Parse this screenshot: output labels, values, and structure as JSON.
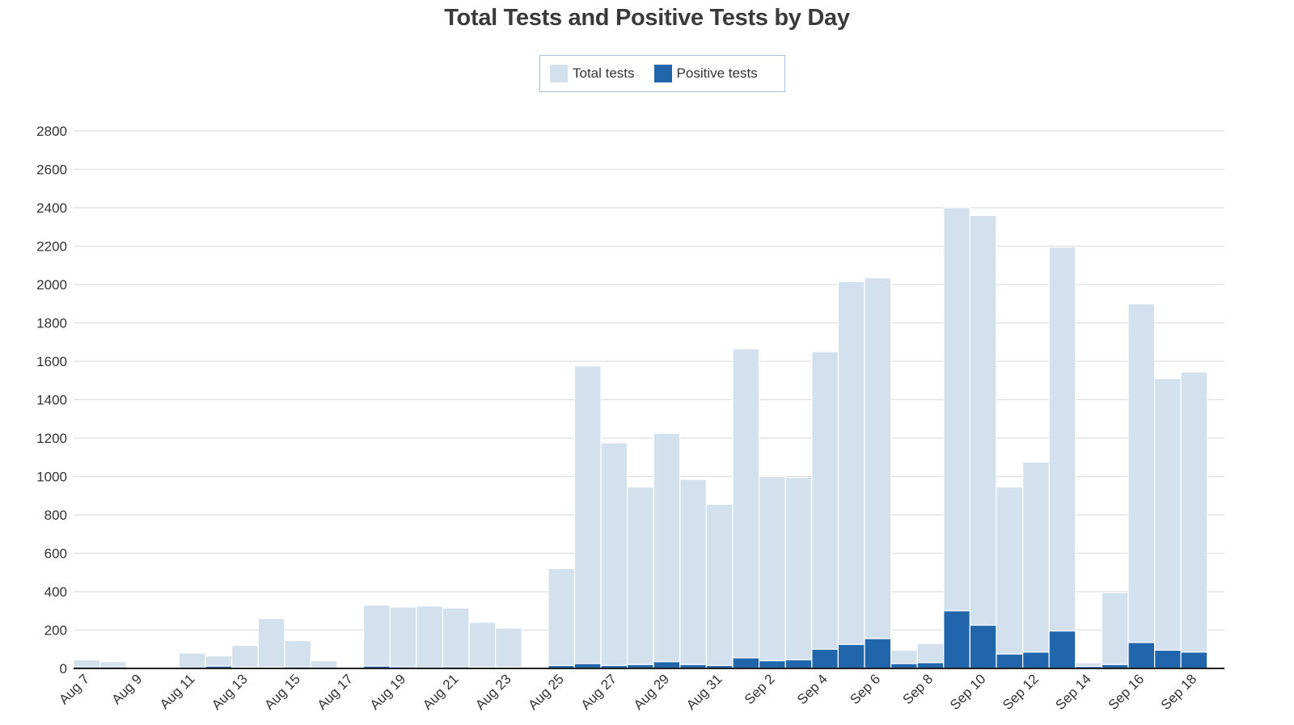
{
  "chart_data": {
    "type": "bar",
    "title": "Total Tests and Positive Tests by Day",
    "xlabel": "",
    "ylabel": "",
    "ylim": [
      0,
      2800
    ],
    "yticks": [
      0,
      200,
      400,
      600,
      800,
      1000,
      1200,
      1400,
      1600,
      1800,
      2000,
      2200,
      2400,
      2600,
      2800
    ],
    "grid": true,
    "legend_position": "top-center",
    "categories": [
      "Aug 7",
      "Aug 8",
      "Aug 9",
      "Aug 10",
      "Aug 11",
      "Aug 12",
      "Aug 13",
      "Aug 14",
      "Aug 15",
      "Aug 16",
      "Aug 17",
      "Aug 18",
      "Aug 19",
      "Aug 20",
      "Aug 21",
      "Aug 22",
      "Aug 23",
      "Aug 24",
      "Aug 25",
      "Aug 26",
      "Aug 27",
      "Aug 28",
      "Aug 29",
      "Aug 30",
      "Aug 31",
      "Sep 1",
      "Sep 2",
      "Sep 3",
      "Sep 4",
      "Sep 5",
      "Sep 6",
      "Sep 7",
      "Sep 8",
      "Sep 9",
      "Sep 10",
      "Sep 11",
      "Sep 12",
      "Sep 13",
      "Sep 14",
      "Sep 15",
      "Sep 16",
      "Sep 17",
      "Sep 18"
    ],
    "tick_labels": [
      "Aug 7",
      "Aug 9",
      "Aug 11",
      "Aug 13",
      "Aug 15",
      "Aug 17",
      "Aug 19",
      "Aug 21",
      "Aug 23",
      "Aug 25",
      "Aug 27",
      "Aug 29",
      "Aug 31",
      "Sep 2",
      "Sep 4",
      "Sep 6",
      "Sep 8",
      "Sep 10",
      "Sep 12",
      "Sep 14",
      "Sep 16",
      "Sep 18"
    ],
    "series": [
      {
        "name": "Total tests",
        "color": "#d3e1ee",
        "values": [
          45,
          35,
          0,
          0,
          80,
          65,
          120,
          260,
          145,
          40,
          0,
          330,
          320,
          325,
          315,
          240,
          210,
          0,
          520,
          1575,
          1175,
          945,
          1225,
          985,
          855,
          1665,
          1000,
          995,
          1650,
          2015,
          2035,
          95,
          130,
          2400,
          2360,
          945,
          1075,
          2195,
          30,
          395,
          1900,
          1510,
          1545
        ]
      },
      {
        "name": "Positive tests",
        "color": "#2166ac",
        "values": [
          8,
          8,
          0,
          0,
          0,
          12,
          5,
          5,
          8,
          0,
          0,
          12,
          8,
          0,
          8,
          5,
          5,
          0,
          15,
          25,
          15,
          20,
          35,
          20,
          15,
          55,
          40,
          45,
          100,
          125,
          155,
          25,
          30,
          300,
          225,
          75,
          85,
          195,
          10,
          20,
          135,
          95,
          85
        ]
      }
    ]
  }
}
